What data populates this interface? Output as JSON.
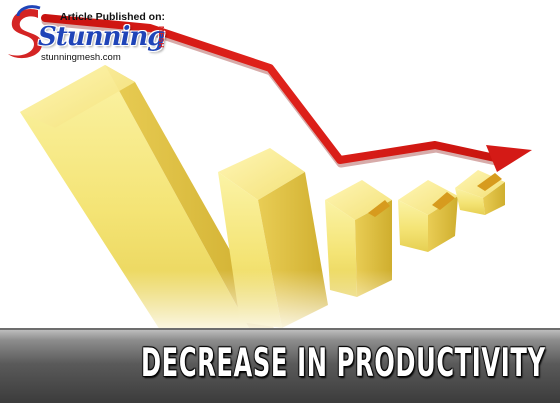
{
  "logo": {
    "published_label": "Article Published on:",
    "brand_name": "Stunning",
    "brand_suffix": "MESH",
    "url": "stunningmesh.com"
  },
  "banner": {
    "title": "DECREASE IN PRODUCTIVITY"
  },
  "colors": {
    "bar_yellow": "#f2e06a",
    "arrow_red": "#d41a16",
    "brand_blue": "#1f44b8",
    "banner_gray": "#5a5a5a"
  },
  "icons": [
    "descending-bars-graphic",
    "downtrend-arrow-icon",
    "logo-swoosh-icon"
  ]
}
